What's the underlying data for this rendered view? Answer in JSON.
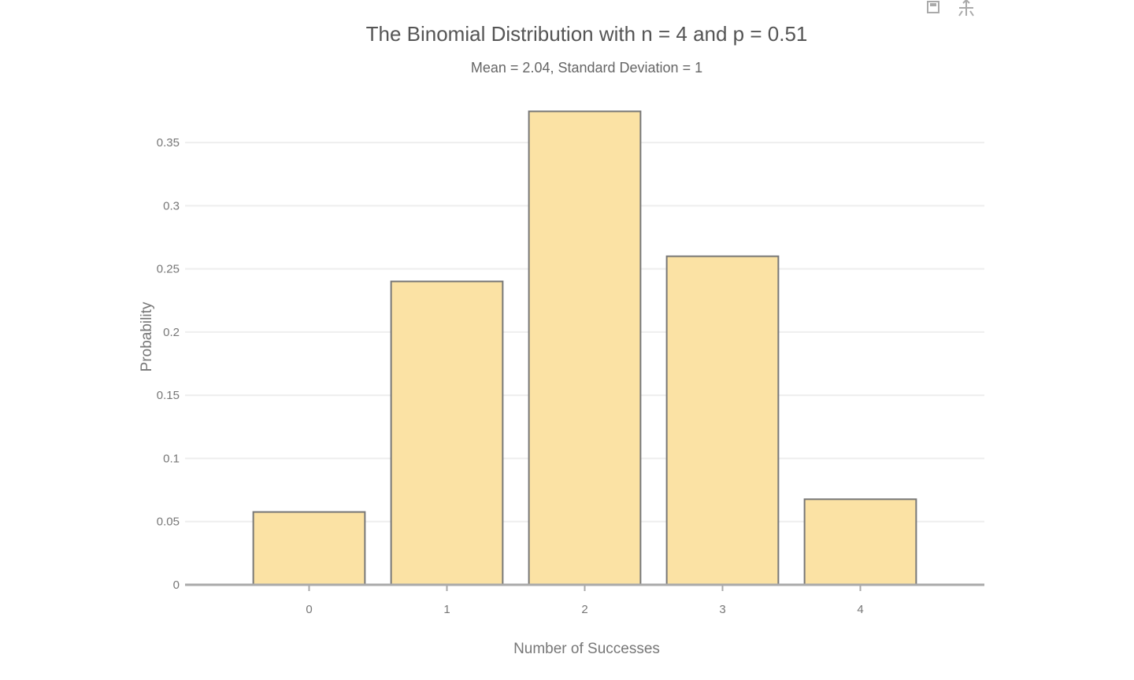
{
  "toolbar": {
    "save_icon": "save-icon",
    "pan_icon": "pan-icon"
  },
  "chart_data": {
    "type": "bar",
    "title": "The Binomial Distribution with n = 4 and p = 0.51",
    "subtitle": "Mean = 2.04, Standard Deviation = 1",
    "xlabel": "Number of Successes",
    "ylabel": "Probability",
    "categories": [
      "0",
      "1",
      "2",
      "3",
      "4"
    ],
    "values": [
      0.0576,
      0.2401,
      0.3747,
      0.26,
      0.0677
    ],
    "ylim": [
      0,
      0.375
    ],
    "yticks": [
      0,
      0.05,
      0.1,
      0.15,
      0.2,
      0.25,
      0.3,
      0.35
    ],
    "ytick_labels": [
      "0",
      "0.05",
      "0.1",
      "0.15",
      "0.2",
      "0.25",
      "0.3",
      "0.35"
    ],
    "grid": true,
    "legend": "none",
    "bar_color": "#fbe2a4",
    "bar_edge_color": "#777777"
  }
}
